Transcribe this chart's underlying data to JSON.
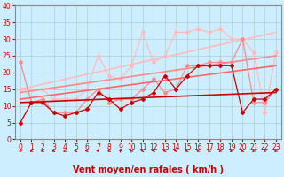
{
  "xlabel": "Vent moyen/en rafales ( km/h )",
  "xlim": [
    -0.5,
    23.5
  ],
  "ylim": [
    0,
    40
  ],
  "xticks": [
    0,
    1,
    2,
    3,
    4,
    5,
    6,
    7,
    8,
    9,
    10,
    11,
    12,
    13,
    14,
    15,
    16,
    17,
    18,
    19,
    20,
    21,
    22,
    23
  ],
  "yticks": [
    0,
    5,
    10,
    15,
    20,
    25,
    30,
    35,
    40
  ],
  "background_color": "#cceeff",
  "grid_color": "#aacccc",
  "lines": [
    {
      "x": [
        0,
        1,
        2,
        3,
        4,
        5,
        6,
        7,
        8,
        9,
        10,
        11,
        12,
        13,
        14,
        15,
        16,
        17,
        18,
        19,
        20,
        21,
        22,
        23
      ],
      "y": [
        23,
        11,
        12,
        8,
        8,
        8,
        12,
        15,
        11,
        12,
        12,
        15,
        18,
        14,
        15,
        22,
        22,
        23,
        23,
        23,
        30,
        11,
        11,
        15
      ],
      "color": "#ff8888",
      "lw": 0.9,
      "marker": "D",
      "ms": 2.0,
      "zorder": 3
    },
    {
      "x": [
        0,
        1,
        2,
        3,
        4,
        5,
        6,
        7,
        8,
        9,
        10,
        11,
        12,
        13,
        14,
        15,
        16,
        17,
        18,
        19,
        20,
        21,
        22,
        23
      ],
      "y": [
        5,
        11,
        11,
        8,
        7,
        8,
        9,
        14,
        12,
        9,
        11,
        12,
        14,
        19,
        15,
        19,
        22,
        22,
        22,
        22,
        8,
        12,
        12,
        15
      ],
      "color": "#cc0000",
      "lw": 0.9,
      "marker": "D",
      "ms": 2.0,
      "zorder": 4
    },
    {
      "x": [
        0,
        1,
        2,
        3,
        4,
        5,
        6,
        7,
        8,
        9,
        10,
        11,
        12,
        13,
        14,
        15,
        16,
        17,
        18,
        19,
        20,
        21,
        22,
        23
      ],
      "y": [
        15,
        15,
        15,
        12,
        12,
        12,
        15,
        25,
        19,
        18,
        22,
        32,
        23,
        25,
        32,
        32,
        33,
        32,
        33,
        30,
        30,
        26,
        8,
        26
      ],
      "color": "#ffbbbb",
      "lw": 0.9,
      "marker": "D",
      "ms": 2.0,
      "zorder": 2
    }
  ],
  "trend_lines": [
    {
      "x0": 0,
      "y0": 11,
      "x1": 23,
      "y1": 14,
      "color": "#cc0000",
      "lw": 1.2,
      "zorder": 5
    },
    {
      "x0": 0,
      "y0": 12,
      "x1": 23,
      "y1": 22,
      "color": "#ff6666",
      "lw": 1.2,
      "zorder": 4
    },
    {
      "x0": 0,
      "y0": 14,
      "x1": 23,
      "y1": 25,
      "color": "#ff8888",
      "lw": 1.2,
      "zorder": 3
    },
    {
      "x0": 0,
      "y0": 15,
      "x1": 23,
      "y1": 32,
      "color": "#ffbbbb",
      "lw": 1.2,
      "zorder": 2
    }
  ],
  "arrow_angles": [
    225,
    200,
    195,
    195,
    200,
    180,
    180,
    180,
    200,
    135,
    120,
    180,
    180,
    180,
    180,
    195,
    200,
    200,
    215,
    215,
    195,
    215,
    215,
    210
  ],
  "arrow_color": "#cc0000",
  "xlabel_fontsize": 7,
  "tick_fontsize": 5.5
}
